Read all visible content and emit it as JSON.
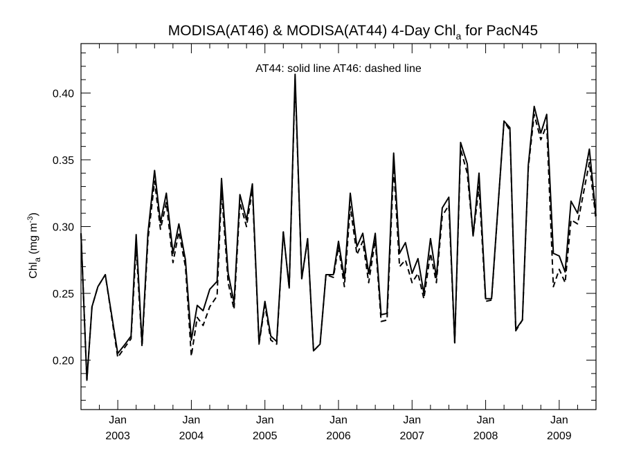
{
  "chart_data": {
    "type": "line",
    "title": "MODISA(AT46) & MODISA(AT44) 4-Day Chl",
    "title_subscript": "a",
    "title_suffix": " for PacN45",
    "ylabel": "Chl",
    "ylabel_subscript": "a",
    "ylabel_units": " (mg m",
    "ylabel_units_sup": "-3",
    "ylabel_units_close": ")",
    "annotation": "AT44: solid line   AT46: dashed line",
    "xlim": [
      2002.5,
      2009.5
    ],
    "ylim": [
      0.163,
      0.437
    ],
    "y_ticks": [
      0.2,
      0.25,
      0.3,
      0.35,
      0.4
    ],
    "y_tick_labels": [
      "0.20",
      "0.25",
      "0.30",
      "0.35",
      "0.40"
    ],
    "x_ticks": [
      {
        "month": "Jan",
        "year": "2003",
        "value": 2003.0
      },
      {
        "month": "Jan",
        "year": "2004",
        "value": 2004.0
      },
      {
        "month": "Jan",
        "year": "2005",
        "value": 2005.0
      },
      {
        "month": "Jan",
        "year": "2006",
        "value": 2006.0
      },
      {
        "month": "Jan",
        "year": "2007",
        "value": 2007.0
      },
      {
        "month": "Jan",
        "year": "2008",
        "value": 2008.0
      },
      {
        "month": "Jan",
        "year": "2009",
        "value": 2009.0
      }
    ],
    "grid": false,
    "series": [
      {
        "name": "AT44",
        "style": "solid",
        "color": "#000000",
        "x": [
          2002.5,
          2002.58,
          2002.65,
          2002.73,
          2002.83,
          2003.0,
          2003.1,
          2003.18,
          2003.25,
          2003.33,
          2003.41,
          2003.5,
          2003.58,
          2003.66,
          2003.75,
          2003.83,
          2003.92,
          2004.0,
          2004.08,
          2004.16,
          2004.25,
          2004.35,
          2004.41,
          2004.5,
          2004.58,
          2004.66,
          2004.75,
          2004.83,
          2004.92,
          2005.0,
          2005.08,
          2005.16,
          2005.25,
          2005.33,
          2005.41,
          2005.5,
          2005.58,
          2005.66,
          2005.75,
          2005.83,
          2005.93,
          2006.0,
          2006.08,
          2006.16,
          2006.25,
          2006.33,
          2006.41,
          2006.5,
          2006.58,
          2006.66,
          2006.75,
          2006.83,
          2006.91,
          2007.0,
          2007.08,
          2007.16,
          2007.25,
          2007.33,
          2007.41,
          2007.5,
          2007.58,
          2007.66,
          2007.75,
          2007.83,
          2007.91,
          2008.0,
          2008.08,
          2008.25,
          2008.33,
          2008.41,
          2008.5,
          2008.58,
          2008.66,
          2008.75,
          2008.83,
          2008.92,
          2009.0,
          2009.08,
          2009.16,
          2009.25,
          2009.41,
          2009.5
        ],
        "y": [
          0.295,
          0.185,
          0.24,
          0.255,
          0.264,
          0.205,
          0.212,
          0.218,
          0.294,
          0.212,
          0.295,
          0.342,
          0.303,
          0.325,
          0.28,
          0.302,
          0.275,
          0.215,
          0.241,
          0.237,
          0.253,
          0.259,
          0.336,
          0.265,
          0.243,
          0.324,
          0.305,
          0.332,
          0.213,
          0.244,
          0.218,
          0.214,
          0.296,
          0.254,
          0.414,
          0.261,
          0.291,
          0.207,
          0.212,
          0.264,
          0.264,
          0.289,
          0.261,
          0.325,
          0.285,
          0.295,
          0.265,
          0.295,
          0.234,
          0.235,
          0.355,
          0.28,
          0.288,
          0.265,
          0.276,
          0.25,
          0.291,
          0.262,
          0.314,
          0.322,
          0.213,
          0.363,
          0.347,
          0.293,
          0.34,
          0.246,
          0.246,
          0.379,
          0.374,
          0.223,
          0.23,
          0.346,
          0.39,
          0.37,
          0.384,
          0.28,
          0.278,
          0.266,
          0.319,
          0.31,
          0.358,
          0.308
        ]
      },
      {
        "name": "AT46",
        "style": "dashed",
        "color": "#000000",
        "x": [
          2002.5,
          2002.58,
          2002.65,
          2002.73,
          2002.83,
          2003.0,
          2003.1,
          2003.18,
          2003.25,
          2003.33,
          2003.41,
          2003.5,
          2003.58,
          2003.66,
          2003.75,
          2003.83,
          2003.92,
          2004.0,
          2004.08,
          2004.16,
          2004.25,
          2004.35,
          2004.41,
          2004.5,
          2004.58,
          2004.66,
          2004.75,
          2004.83,
          2004.92,
          2005.0,
          2005.08,
          2005.16,
          2005.25,
          2005.33,
          2005.41,
          2005.5,
          2005.58,
          2005.66,
          2005.75,
          2005.83,
          2005.93,
          2006.0,
          2006.08,
          2006.16,
          2006.25,
          2006.33,
          2006.41,
          2006.5,
          2006.58,
          2006.66,
          2006.75,
          2006.83,
          2006.91,
          2007.0,
          2007.08,
          2007.16,
          2007.25,
          2007.33,
          2007.41,
          2007.5,
          2007.58,
          2007.66,
          2007.75,
          2007.83,
          2007.91,
          2008.0,
          2008.08,
          2008.25,
          2008.33,
          2008.41,
          2008.5,
          2008.58,
          2008.66,
          2008.75,
          2008.83,
          2008.92,
          2009.0,
          2009.08,
          2009.16,
          2009.25,
          2009.41,
          2009.5
        ],
        "y": [
          0.295,
          0.185,
          0.24,
          0.255,
          0.264,
          0.202,
          0.21,
          0.216,
          0.285,
          0.21,
          0.29,
          0.334,
          0.298,
          0.318,
          0.273,
          0.296,
          0.27,
          0.203,
          0.232,
          0.226,
          0.24,
          0.248,
          0.327,
          0.258,
          0.238,
          0.318,
          0.3,
          0.328,
          0.212,
          0.241,
          0.215,
          0.212,
          0.296,
          0.254,
          0.41,
          0.261,
          0.29,
          0.207,
          0.212,
          0.264,
          0.262,
          0.285,
          0.255,
          0.315,
          0.279,
          0.289,
          0.258,
          0.29,
          0.229,
          0.23,
          0.345,
          0.27,
          0.275,
          0.258,
          0.265,
          0.246,
          0.28,
          0.258,
          0.308,
          0.316,
          0.213,
          0.358,
          0.34,
          0.293,
          0.33,
          0.244,
          0.245,
          0.379,
          0.372,
          0.222,
          0.23,
          0.344,
          0.384,
          0.365,
          0.376,
          0.255,
          0.268,
          0.258,
          0.305,
          0.302,
          0.348,
          0.305
        ]
      }
    ]
  }
}
